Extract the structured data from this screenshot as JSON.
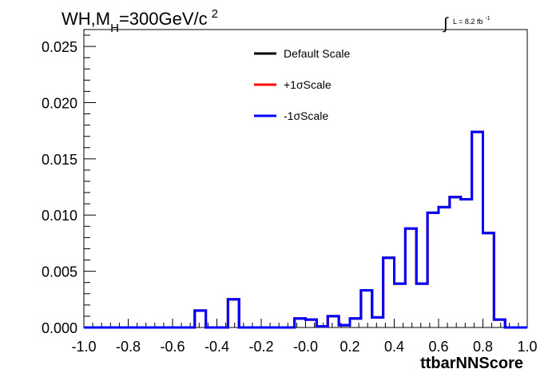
{
  "chart_data": {
    "type": "line",
    "title_parts": {
      "main": "WH,M",
      "sub": "H",
      "rest": "=300GeV/c",
      "sup": "2"
    },
    "lumi_parts": {
      "integral": "∫",
      "text": "L = 8.2 fb",
      "sup": "-1"
    },
    "xlabel": "ttbarNNScore",
    "ylabel": "",
    "xlim": [
      -1.0,
      1.0
    ],
    "ylim": [
      0.0,
      0.0265
    ],
    "x_ticks": [
      "-1.0",
      "-0.8",
      "-0.6",
      "-0.4",
      "-0.2",
      "-0.0",
      "0.2",
      "0.4",
      "0.6",
      "0.8",
      "1.0"
    ],
    "y_ticks": [
      "0.000",
      "0.005",
      "0.010",
      "0.015",
      "0.020",
      "0.025"
    ],
    "bin_edges_range": [
      -1.0,
      1.0
    ],
    "n_bins": 40,
    "series": [
      {
        "name": "Default Scale",
        "color": "#000000",
        "values": [
          0,
          0,
          0,
          0,
          0,
          0,
          0,
          0,
          0,
          0,
          0.0015,
          0,
          0,
          0.0025,
          0,
          0,
          0,
          0,
          0,
          0.0008,
          0.0007,
          0.0001,
          0.001,
          0.0002,
          0.0008,
          0.0033,
          0.0009,
          0.0062,
          0.0039,
          0.0088,
          0.0039,
          0.0102,
          0.0107,
          0.0116,
          0.0114,
          0.0174,
          0.0084,
          0.0007,
          0,
          0
        ]
      },
      {
        "name": "+1σScale",
        "color": "#ff0000",
        "values": [
          0,
          0,
          0,
          0,
          0,
          0,
          0,
          0,
          0,
          0,
          0.0015,
          0,
          0,
          0.0025,
          0,
          0,
          0,
          0,
          0,
          0.0008,
          0.0007,
          0.0001,
          0.001,
          0.0002,
          0.0008,
          0.0033,
          0.0009,
          0.0062,
          0.0039,
          0.0088,
          0.0039,
          0.0102,
          0.0107,
          0.0116,
          0.0114,
          0.0174,
          0.0084,
          0.0007,
          0,
          0
        ]
      },
      {
        "name": "-1σScale",
        "color": "#0000ff",
        "values": [
          0,
          0,
          0,
          0,
          0,
          0,
          0,
          0,
          0,
          0,
          0.0015,
          0,
          0,
          0.0025,
          0,
          0,
          0,
          0,
          0,
          0.0008,
          0.0007,
          0.0001,
          0.001,
          0.0002,
          0.0008,
          0.0033,
          0.0009,
          0.0062,
          0.0039,
          0.0088,
          0.0039,
          0.0102,
          0.0107,
          0.0116,
          0.0114,
          0.0174,
          0.0084,
          0.0007,
          0,
          0
        ]
      }
    ],
    "legend_position": "top-center",
    "grid": false
  }
}
